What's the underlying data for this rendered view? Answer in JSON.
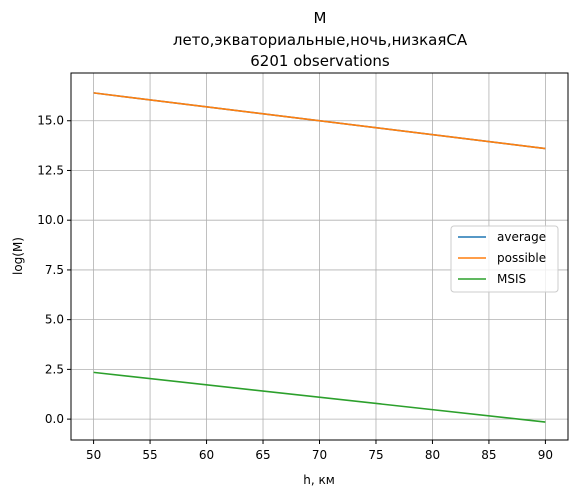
{
  "chart_data": {
    "type": "line",
    "title_lines": [
      "M",
      "лето,экваториальные,ночь,низкаяСА",
      "6201 observations"
    ],
    "xlabel": "h, км",
    "ylabel": "log(M)",
    "xlim": [
      48,
      92
    ],
    "ylim": [
      -1.05,
      17.4
    ],
    "xticks": [
      50,
      55,
      60,
      65,
      70,
      75,
      80,
      85,
      90
    ],
    "xtick_labels": [
      "50",
      "55",
      "60",
      "65",
      "70",
      "75",
      "80",
      "85",
      "90"
    ],
    "yticks": [
      0.0,
      2.5,
      5.0,
      7.5,
      10.0,
      12.5,
      15.0
    ],
    "ytick_labels": [
      "0.0",
      "2.5",
      "5.0",
      "7.5",
      "10.0",
      "12.5",
      "15.0"
    ],
    "grid": true,
    "legend_position": "center-right",
    "series": [
      {
        "name": "average",
        "color": "#1f77b4",
        "x": [
          50,
          90
        ],
        "y": [
          16.4,
          13.6
        ]
      },
      {
        "name": "possible",
        "color": "#ff7f0e",
        "x": [
          50,
          90
        ],
        "y": [
          16.4,
          13.6
        ]
      },
      {
        "name": "MSIS",
        "color": "#2ca02c",
        "x": [
          50,
          90
        ],
        "y": [
          2.35,
          -0.15
        ]
      }
    ]
  }
}
